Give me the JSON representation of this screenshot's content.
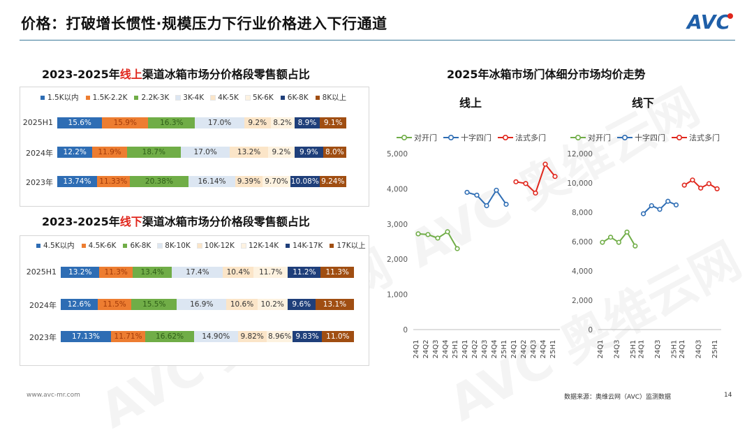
{
  "page_title": "价格：打破增长惯性·规模压力下行业价格进入下行通道",
  "logo_text": "AVC",
  "online_title": {
    "pre": "2023-2025年",
    "hl": "线上",
    "post": "渠道冰箱市场分价格段零售额占比"
  },
  "offline_title": {
    "pre": "2023-2025年",
    "hl": "线下",
    "post": "渠道冰箱市场分价格段零售额占比"
  },
  "right_title": "2025年冰箱市场门体细分市场均价走势",
  "right_sub_online": "线上",
  "right_sub_offline": "线下",
  "footer_left": "www.avc-mr.com",
  "footer_source": "数据来源：奥维云网（AVC）监测数据",
  "page_number": "14",
  "watermark": "AVC 奥维云网",
  "chart_data": [
    {
      "type": "bar",
      "stacked": "100%",
      "categories": [
        "2025H1",
        "2024年",
        "2023年"
      ],
      "legend": [
        "1.5K以内",
        "1.5K-2.2K",
        "2.2K-3K",
        "3K-4K",
        "4K-5K",
        "5K-6K",
        "6K-8K",
        "8K以上"
      ],
      "colors": [
        "#2e6db4",
        "#ed7d31",
        "#70ad47",
        "#dce6f2",
        "#fbe5c8",
        "#fdf2e0",
        "#1f3f7a",
        "#a04e12"
      ],
      "text_colors": [
        "#ffffff",
        "#a33a08",
        "#2f5e18",
        "#333333",
        "#333333",
        "#333333",
        "#ffffff",
        "#ffffff"
      ],
      "values": [
        [
          15.6,
          15.9,
          16.3,
          17.0,
          9.2,
          8.2,
          8.9,
          9.1
        ],
        [
          12.2,
          11.9,
          18.7,
          17.0,
          13.2,
          9.2,
          9.9,
          8.0
        ],
        [
          13.74,
          11.33,
          20.38,
          16.14,
          9.39,
          9.7,
          10.08,
          9.24
        ]
      ],
      "labels": [
        [
          "15.6%",
          "15.9%",
          "16.3%",
          "17.0%",
          "9.2%",
          "8.2%",
          "8.9%",
          "9.1%"
        ],
        [
          "12.2%",
          "11.9%",
          "18.7%",
          "17.0%",
          "13.2%",
          "9.2%",
          "9.9%",
          "8.0%"
        ],
        [
          "13.74%",
          "11.33%",
          "20.38%",
          "16.14%",
          "9.39%",
          "9.70%",
          "10.08%",
          "9.24%"
        ]
      ]
    },
    {
      "type": "bar",
      "stacked": "100%",
      "categories": [
        "2025H1",
        "2024年",
        "2023年"
      ],
      "legend": [
        "4.5K以内",
        "4.5K-6K",
        "6K-8K",
        "8K-10K",
        "10K-12K",
        "12K-14K",
        "14K-17K",
        "17K以上"
      ],
      "colors": [
        "#2e6db4",
        "#ed7d31",
        "#70ad47",
        "#dce6f2",
        "#fbe5c8",
        "#fdf2e0",
        "#1f3f7a",
        "#a04e12"
      ],
      "text_colors": [
        "#ffffff",
        "#a33a08",
        "#2f5e18",
        "#333333",
        "#333333",
        "#333333",
        "#ffffff",
        "#ffffff"
      ],
      "values": [
        [
          13.2,
          11.3,
          13.4,
          17.4,
          10.4,
          11.7,
          11.2,
          11.3
        ],
        [
          12.6,
          11.5,
          15.5,
          16.9,
          10.6,
          10.2,
          9.6,
          13.1
        ],
        [
          17.13,
          11.71,
          16.62,
          14.9,
          9.82,
          8.96,
          9.83,
          11.0
        ]
      ],
      "labels": [
        [
          "13.2%",
          "11.3%",
          "13.4%",
          "17.4%",
          "10.4%",
          "11.7%",
          "11.2%",
          "11.3%"
        ],
        [
          "12.6%",
          "11.5%",
          "15.5%",
          "16.9%",
          "10.6%",
          "10.2%",
          "9.6%",
          "13.1%"
        ],
        [
          "17.13%",
          "11.71%",
          "16.62%",
          "14.90%",
          "9.82%",
          "8.96%",
          "9.83%",
          "11.0%"
        ]
      ]
    },
    {
      "type": "line",
      "subtitle": "线上",
      "legend": [
        "对开门",
        "十字四门",
        "法式多门"
      ],
      "colors": [
        "#70ad47",
        "#2e6db4",
        "#e0261c"
      ],
      "ylim": [
        0,
        5000
      ],
      "yticks": [
        0,
        1000,
        2000,
        3000,
        4000,
        5000
      ],
      "ytick_labels": [
        "0",
        "1,000",
        "2,000",
        "3,000",
        "4,000",
        "5,000"
      ],
      "xtick_labels": [
        "24Q1",
        "24Q2",
        "24Q3",
        "24Q4",
        "25H1",
        "24Q1",
        "24Q2",
        "24Q3",
        "24Q4",
        "25H1",
        "24Q1",
        "24Q2",
        "24Q3",
        "24Q4",
        "25H1"
      ],
      "series": [
        {
          "name": "对开门",
          "x_index": [
            0,
            1,
            2,
            3,
            4
          ],
          "values": [
            2720,
            2700,
            2600,
            2780,
            2300
          ]
        },
        {
          "name": "十字四门",
          "x_index": [
            5,
            6,
            7,
            8,
            9
          ],
          "values": [
            3900,
            3820,
            3520,
            3960,
            3560
          ]
        },
        {
          "name": "法式多门",
          "x_index": [
            10,
            11,
            12,
            13,
            14
          ],
          "values": [
            4200,
            4150,
            3880,
            4700,
            4350
          ]
        }
      ]
    },
    {
      "type": "line",
      "subtitle": "线下",
      "legend": [
        "对开门",
        "十字四门",
        "法式多门"
      ],
      "colors": [
        "#70ad47",
        "#2e6db4",
        "#e0261c"
      ],
      "ylim": [
        0,
        12000
      ],
      "yticks": [
        0,
        2000,
        4000,
        6000,
        8000,
        10000,
        12000
      ],
      "ytick_labels": [
        "0",
        "2,000",
        "4,000",
        "6,000",
        "8,000",
        "10,000",
        "12,000"
      ],
      "xtick_labels": [
        "24Q1",
        "",
        "24Q3",
        "",
        "25H1",
        "24Q1",
        "",
        "24Q3",
        "",
        "25H1",
        "24Q1",
        "",
        "24Q3",
        "",
        "25H1"
      ],
      "series": [
        {
          "name": "对开门",
          "x_index": [
            0,
            1,
            2,
            3,
            4
          ],
          "values": [
            5950,
            6300,
            5950,
            6650,
            5700
          ]
        },
        {
          "name": "十字四门",
          "x_index": [
            5,
            6,
            7,
            8,
            9
          ],
          "values": [
            7900,
            8450,
            8200,
            8750,
            8500
          ]
        },
        {
          "name": "法式多门",
          "x_index": [
            10,
            11,
            12,
            13,
            14
          ],
          "values": [
            9850,
            10200,
            9650,
            9950,
            9600
          ]
        }
      ]
    }
  ]
}
